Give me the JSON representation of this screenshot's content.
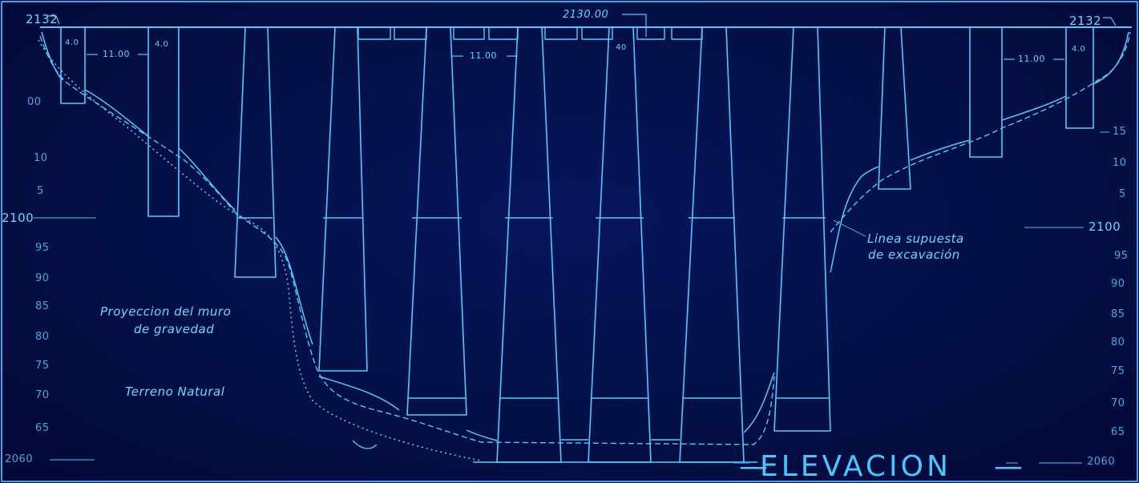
{
  "drawing": {
    "title": "ELEVACION",
    "crest_elevation": "2130.00",
    "left_corner_elevation": "2132",
    "right_corner_elevation": "2132",
    "spans": [
      "11.00",
      "11.00",
      "11.00"
    ],
    "pier_widths": [
      "4.0",
      "4.0",
      "40",
      "4.0"
    ],
    "annotations": {
      "projection": [
        "Proyeccion del muro",
        "de gravedad"
      ],
      "natural_ground": "Terreno Natural",
      "excavation": [
        "Linea supuesta",
        "de excavación"
      ]
    },
    "left_scale": [
      "00",
      "10",
      "5",
      "2100",
      "95",
      "90",
      "85",
      "80",
      "75",
      "70",
      "65",
      "2060"
    ],
    "right_scale": [
      "15",
      "10",
      "5",
      "2100",
      "95",
      "90",
      "85",
      "80",
      "75",
      "70",
      "65",
      "2060"
    ]
  },
  "colors": {
    "background": "#031046",
    "line": "#5ad0ff",
    "text": "#5fd2ff"
  }
}
